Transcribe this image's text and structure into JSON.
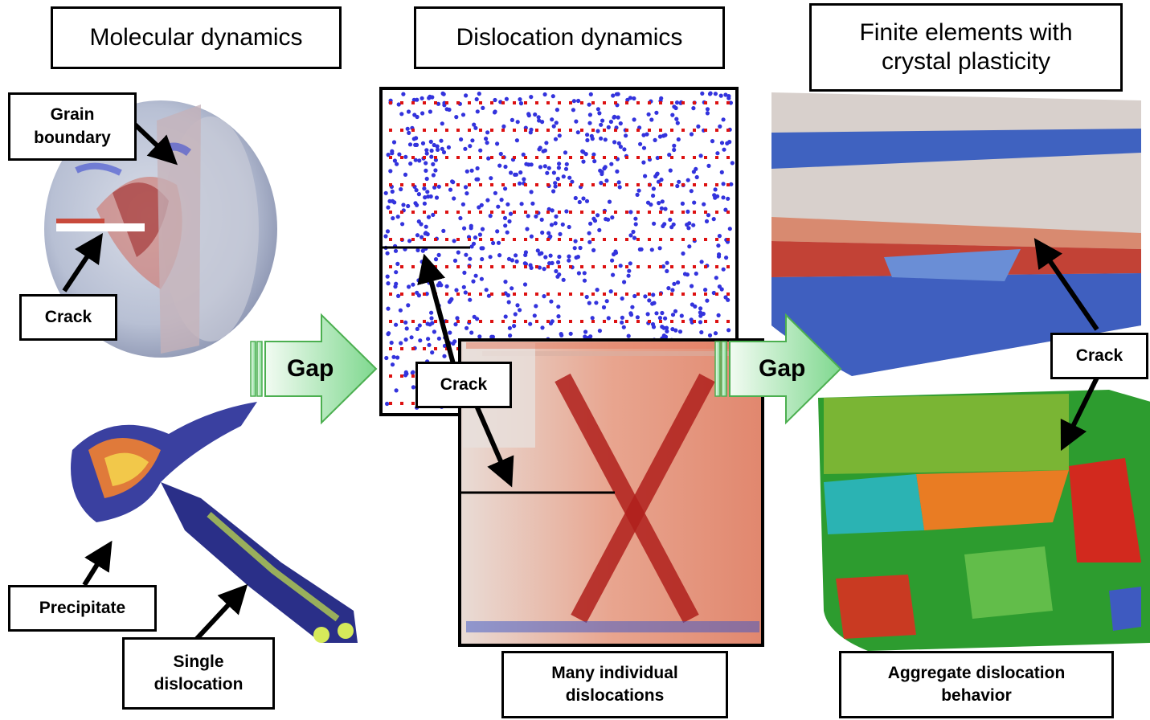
{
  "titles": {
    "molecular": "Molecular dynamics",
    "dislocation": "Dislocation dynamics",
    "finite": "Finite elements with crystal plasticity"
  },
  "labels": {
    "grain_boundary": "Grain boundary",
    "crack_md": "Crack",
    "precipitate": "Precipitate",
    "single_dislocation": "Single dislocation",
    "crack_dd": "Crack",
    "many_dislocations": "Many individual dislocations",
    "crack_fe": "Crack",
    "aggregate": "Aggregate dislocation behavior"
  },
  "gaps": {
    "left": "Gap",
    "right": "Gap"
  },
  "colors": {
    "dot_blue": "#3333dd",
    "dot_red": "#dd1111",
    "arrow_green_light": "#e6f8e6",
    "arrow_green_dark": "#7fd88f",
    "arrow_border": "#4caf50"
  }
}
